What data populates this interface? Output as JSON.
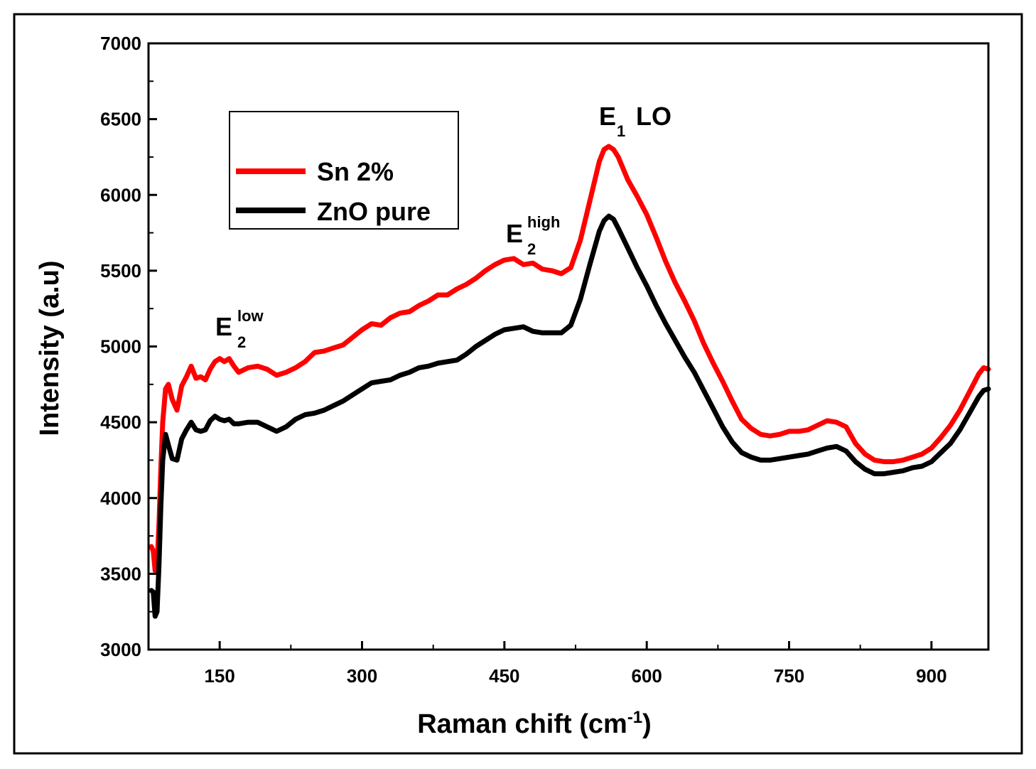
{
  "chart_data": {
    "type": "line",
    "xlabel": "Raman chift (cm",
    "xlabel_superscript": "-1",
    "xlabel_suffix": ")",
    "ylabel": "Intensity (a.u)",
    "xlim": [
      75,
      960
    ],
    "ylim": [
      3000,
      7000
    ],
    "xticks": [
      150,
      300,
      450,
      600,
      750,
      900
    ],
    "yticks": [
      3000,
      3500,
      4000,
      4500,
      5000,
      5500,
      6000,
      6500,
      7000
    ],
    "xtick_labels": [
      "150",
      "300",
      "450",
      "600",
      "750",
      "900"
    ],
    "ytick_labels": [
      "3000",
      "3500",
      "4000",
      "4500",
      "5000",
      "5500",
      "6000",
      "6500",
      "7000"
    ],
    "legend_position": "top-left",
    "annotations": [
      {
        "id": "e2low",
        "base": "E",
        "sub": "2",
        "sup": "low",
        "x": 120,
        "y": 4980
      },
      {
        "id": "e2high",
        "base": "E",
        "sub": "2",
        "sup": "high",
        "x": 475,
        "y": 5620
      },
      {
        "id": "e1lo",
        "base": "E",
        "sub": "1",
        "text": " LO",
        "x": 570,
        "y": 6360
      }
    ],
    "series": [
      {
        "name": "Sn 2%",
        "color": "#ff0000",
        "x": [
          78,
          80,
          82,
          84,
          86,
          88,
          90,
          93,
          96,
          100,
          105,
          110,
          115,
          120,
          125,
          130,
          135,
          140,
          145,
          150,
          155,
          160,
          165,
          170,
          180,
          190,
          200,
          210,
          220,
          230,
          240,
          250,
          260,
          270,
          280,
          290,
          300,
          310,
          320,
          330,
          340,
          350,
          360,
          370,
          380,
          390,
          400,
          410,
          420,
          430,
          440,
          450,
          460,
          470,
          480,
          490,
          500,
          510,
          520,
          530,
          540,
          550,
          555,
          560,
          565,
          570,
          580,
          590,
          600,
          610,
          620,
          630,
          640,
          650,
          660,
          670,
          680,
          690,
          700,
          710,
          720,
          730,
          740,
          750,
          760,
          770,
          780,
          790,
          800,
          810,
          820,
          830,
          840,
          850,
          860,
          870,
          880,
          890,
          900,
          910,
          920,
          930,
          940,
          950,
          955,
          960
        ],
        "y": [
          3680,
          3650,
          3520,
          3560,
          3820,
          4200,
          4500,
          4720,
          4750,
          4650,
          4580,
          4740,
          4800,
          4870,
          4790,
          4800,
          4780,
          4850,
          4900,
          4920,
          4900,
          4920,
          4870,
          4830,
          4860,
          4870,
          4850,
          4810,
          4830,
          4860,
          4900,
          4960,
          4970,
          4990,
          5010,
          5060,
          5110,
          5150,
          5140,
          5190,
          5220,
          5230,
          5270,
          5300,
          5340,
          5340,
          5380,
          5410,
          5450,
          5500,
          5540,
          5570,
          5580,
          5540,
          5550,
          5510,
          5500,
          5480,
          5520,
          5700,
          5960,
          6220,
          6300,
          6320,
          6300,
          6250,
          6100,
          5990,
          5870,
          5720,
          5560,
          5420,
          5300,
          5170,
          5020,
          4890,
          4770,
          4640,
          4520,
          4460,
          4420,
          4410,
          4420,
          4440,
          4440,
          4450,
          4480,
          4510,
          4500,
          4470,
          4360,
          4290,
          4250,
          4240,
          4240,
          4250,
          4270,
          4290,
          4330,
          4400,
          4480,
          4580,
          4700,
          4820,
          4860,
          4850
        ]
      },
      {
        "name": "ZnO pure",
        "color": "#000000",
        "x": [
          78,
          80,
          82,
          84,
          86,
          88,
          90,
          93,
          96,
          100,
          105,
          110,
          115,
          120,
          125,
          130,
          135,
          140,
          145,
          150,
          155,
          160,
          165,
          170,
          180,
          190,
          200,
          210,
          220,
          230,
          240,
          250,
          260,
          270,
          280,
          290,
          300,
          310,
          320,
          330,
          340,
          350,
          360,
          370,
          380,
          390,
          400,
          410,
          420,
          430,
          440,
          450,
          460,
          470,
          480,
          490,
          500,
          510,
          520,
          530,
          540,
          550,
          555,
          560,
          565,
          570,
          580,
          590,
          600,
          610,
          620,
          630,
          640,
          650,
          660,
          670,
          680,
          690,
          700,
          710,
          720,
          730,
          740,
          750,
          760,
          770,
          780,
          790,
          800,
          810,
          820,
          830,
          840,
          850,
          860,
          870,
          880,
          890,
          900,
          910,
          920,
          930,
          940,
          950,
          955,
          960
        ],
        "y": [
          3390,
          3380,
          3220,
          3250,
          3550,
          3950,
          4250,
          4420,
          4350,
          4260,
          4250,
          4390,
          4450,
          4500,
          4450,
          4440,
          4450,
          4510,
          4540,
          4520,
          4510,
          4520,
          4490,
          4490,
          4500,
          4500,
          4470,
          4440,
          4470,
          4520,
          4550,
          4560,
          4580,
          4610,
          4640,
          4680,
          4720,
          4760,
          4770,
          4780,
          4810,
          4830,
          4860,
          4870,
          4890,
          4900,
          4910,
          4950,
          5000,
          5040,
          5080,
          5110,
          5120,
          5130,
          5100,
          5090,
          5090,
          5090,
          5140,
          5310,
          5540,
          5760,
          5830,
          5860,
          5840,
          5780,
          5650,
          5520,
          5400,
          5270,
          5150,
          5040,
          4930,
          4830,
          4710,
          4590,
          4470,
          4370,
          4300,
          4270,
          4250,
          4250,
          4260,
          4270,
          4280,
          4290,
          4310,
          4330,
          4340,
          4310,
          4240,
          4190,
          4160,
          4160,
          4170,
          4180,
          4200,
          4210,
          4240,
          4300,
          4360,
          4450,
          4560,
          4670,
          4710,
          4720
        ]
      }
    ]
  },
  "colors": {
    "sn_line": "#ff0000",
    "zno_line": "#000000",
    "axis": "#000000"
  }
}
